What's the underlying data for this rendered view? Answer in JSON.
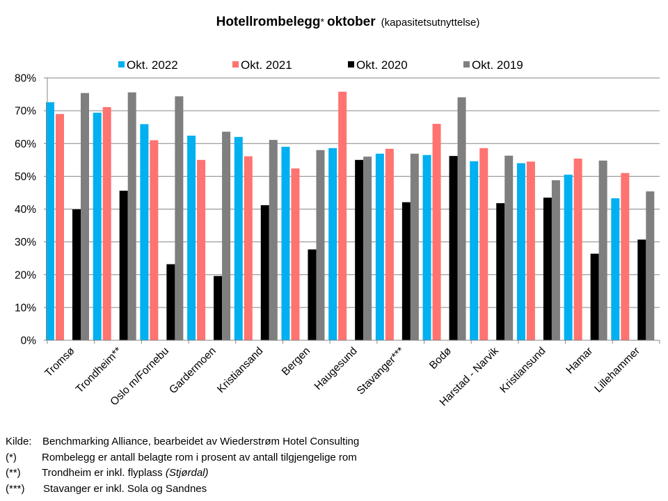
{
  "chart_data": {
    "type": "bar",
    "title": "Hotellrombelegg",
    "title_star": "*",
    "title_suffix": "oktober",
    "subtitle": "(kapasitetsutnyttelse)",
    "categories": [
      "Tromsø",
      "Trondheim**",
      "Oslo m/Fornebu",
      "Gardermoen",
      "Kristiansand",
      "Bergen",
      "Haugesund",
      "Stavanger***",
      "Bodø",
      "Harstad - Narvik",
      "Kristiansund",
      "Hamar",
      "Lillehammer"
    ],
    "series": [
      {
        "name": "Okt. 2022",
        "color": "#00B0F0",
        "values": [
          72.6,
          69.4,
          65.9,
          62.4,
          62.0,
          59.0,
          58.6,
          56.9,
          56.5,
          54.6,
          54.0,
          50.5,
          43.3
        ]
      },
      {
        "name": "Okt. 2021",
        "color": "#FF7370",
        "values": [
          69.0,
          71.1,
          61.0,
          55.0,
          56.1,
          52.4,
          75.8,
          58.4,
          66.0,
          58.6,
          54.5,
          55.4,
          51.0
        ]
      },
      {
        "name": "Okt. 2020",
        "color": "#000000",
        "values": [
          39.9,
          45.6,
          23.2,
          19.6,
          41.2,
          27.7,
          55.0,
          42.1,
          56.2,
          41.8,
          43.5,
          26.4,
          30.7
        ]
      },
      {
        "name": "Okt. 2019",
        "color": "#7F7F7F",
        "values": [
          75.4,
          75.6,
          74.4,
          63.6,
          61.1,
          58.0,
          56.0,
          56.9,
          74.1,
          56.3,
          48.8,
          54.8,
          45.4
        ]
      }
    ],
    "xlabel": "",
    "ylabel": "",
    "ylim": [
      0,
      80
    ],
    "yticks": [
      0,
      10,
      20,
      30,
      40,
      50,
      60,
      70,
      80
    ],
    "ytick_labels": [
      "0%",
      "10%",
      "20%",
      "30%",
      "40%",
      "50%",
      "60%",
      "70%",
      "80%"
    ],
    "grid": true,
    "legend_position": "top"
  },
  "notes": [
    {
      "key": "Kilde:",
      "text": "Benchmarking Alliance, bearbeidet av Wiederstrøm Hotel Consulting"
    },
    {
      "key": "(*)",
      "text": "Rombelegg er antall belagte rom i prosent av antall tilgjengelige rom"
    },
    {
      "key": "(**)",
      "text": "Trondheim er inkl. flyplass",
      "extra": "(Stjørdal)"
    },
    {
      "key": "(***)",
      "text": "Stavanger  er  inkl.  Sola og  Sandnes"
    }
  ]
}
